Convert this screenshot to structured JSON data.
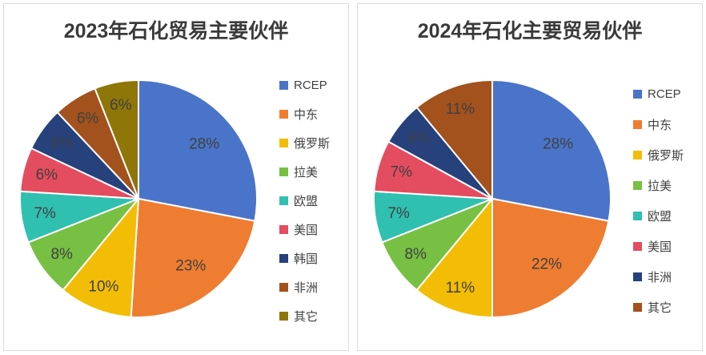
{
  "window": {
    "background": "#FFFFFF",
    "panel_border": "#DCDCDC"
  },
  "text_colors": {
    "title": "#3A3A3A",
    "slice_label": "#404040",
    "legend_label": "#404040"
  },
  "chart_data": [
    {
      "type": "pie",
      "title": "2023年石化贸易主要伙伴",
      "legend_position": "right",
      "start_angle": "top",
      "direction": "clockwise",
      "slice_gap_color": "#FFFFFF",
      "categories": [
        "RCEP",
        "中东",
        "俄罗斯",
        "拉美",
        "欧盟",
        "美国",
        "韩国",
        "非洲",
        "其它"
      ],
      "slugs": [
        "rcep",
        "middle-east",
        "russia",
        "latin-america",
        "eu",
        "usa",
        "south-korea",
        "africa",
        "other"
      ],
      "values": [
        28,
        23,
        10,
        8,
        7,
        6,
        6,
        6,
        6
      ],
      "labels": [
        "28%",
        "23%",
        "10%",
        "8%",
        "7%",
        "6%",
        "6%",
        "6%",
        "6%"
      ],
      "colors": [
        "#4A74C9",
        "#EE7D31",
        "#F3BD05",
        "#77C044",
        "#2FC0B0",
        "#E44D5F",
        "#26417C",
        "#A3511D",
        "#8F7608"
      ]
    },
    {
      "type": "pie",
      "title": "2024年石化主要贸易伙伴",
      "legend_position": "right",
      "start_angle": "top",
      "direction": "clockwise",
      "slice_gap_color": "#FFFFFF",
      "categories": [
        "RCEP",
        "中东",
        "俄罗斯",
        "拉美",
        "欧盟",
        "美国",
        "非洲",
        "其它"
      ],
      "slugs": [
        "rcep",
        "middle-east",
        "russia",
        "latin-america",
        "eu",
        "usa",
        "africa",
        "other"
      ],
      "values": [
        28,
        22,
        11,
        8,
        7,
        7,
        6,
        11
      ],
      "labels": [
        "28%",
        "22%",
        "11%",
        "8%",
        "7%",
        "7%",
        "6%",
        "11%"
      ],
      "colors": [
        "#4A74C9",
        "#EE7D31",
        "#F3BD05",
        "#77C044",
        "#2FC0B0",
        "#E44D5F",
        "#26417C",
        "#A3511D"
      ]
    }
  ]
}
